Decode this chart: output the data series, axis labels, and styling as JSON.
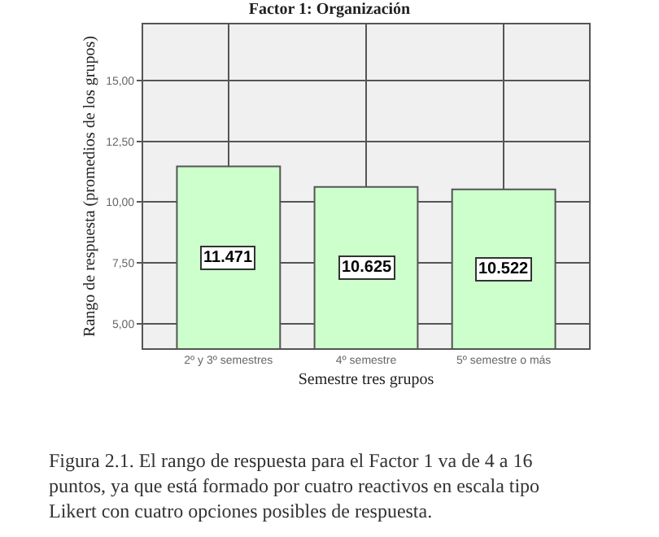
{
  "chart_data": {
    "type": "bar",
    "title": "Factor 1: Organización",
    "xlabel": "Semestre tres grupos",
    "ylabel": "Rango de respuesta (promedios de los grupos)",
    "categories": [
      "2º y 3º semestres",
      "4º semestre",
      "5º semestre o más"
    ],
    "values": [
      11.471,
      10.625,
      10.522
    ],
    "color": "#ccffcc",
    "ylim": [
      4,
      17.3
    ],
    "yticks": [
      {
        "value": 5,
        "label": "5,00"
      },
      {
        "value": 7.5,
        "label": "7,50"
      },
      {
        "value": 10,
        "label": "10,00"
      },
      {
        "value": 12.5,
        "label": "12,50"
      },
      {
        "value": 15,
        "label": "15,00"
      }
    ],
    "grid": true,
    "data_labels": true,
    "annotations": [
      "Figura 2.1. El rango de respuesta para el Factor 1 va de 4 a 16 puntos, ya que está formado por cuatro reactivos en escala tipo Likert con cuatro opciones posibles de respuesta."
    ]
  }
}
